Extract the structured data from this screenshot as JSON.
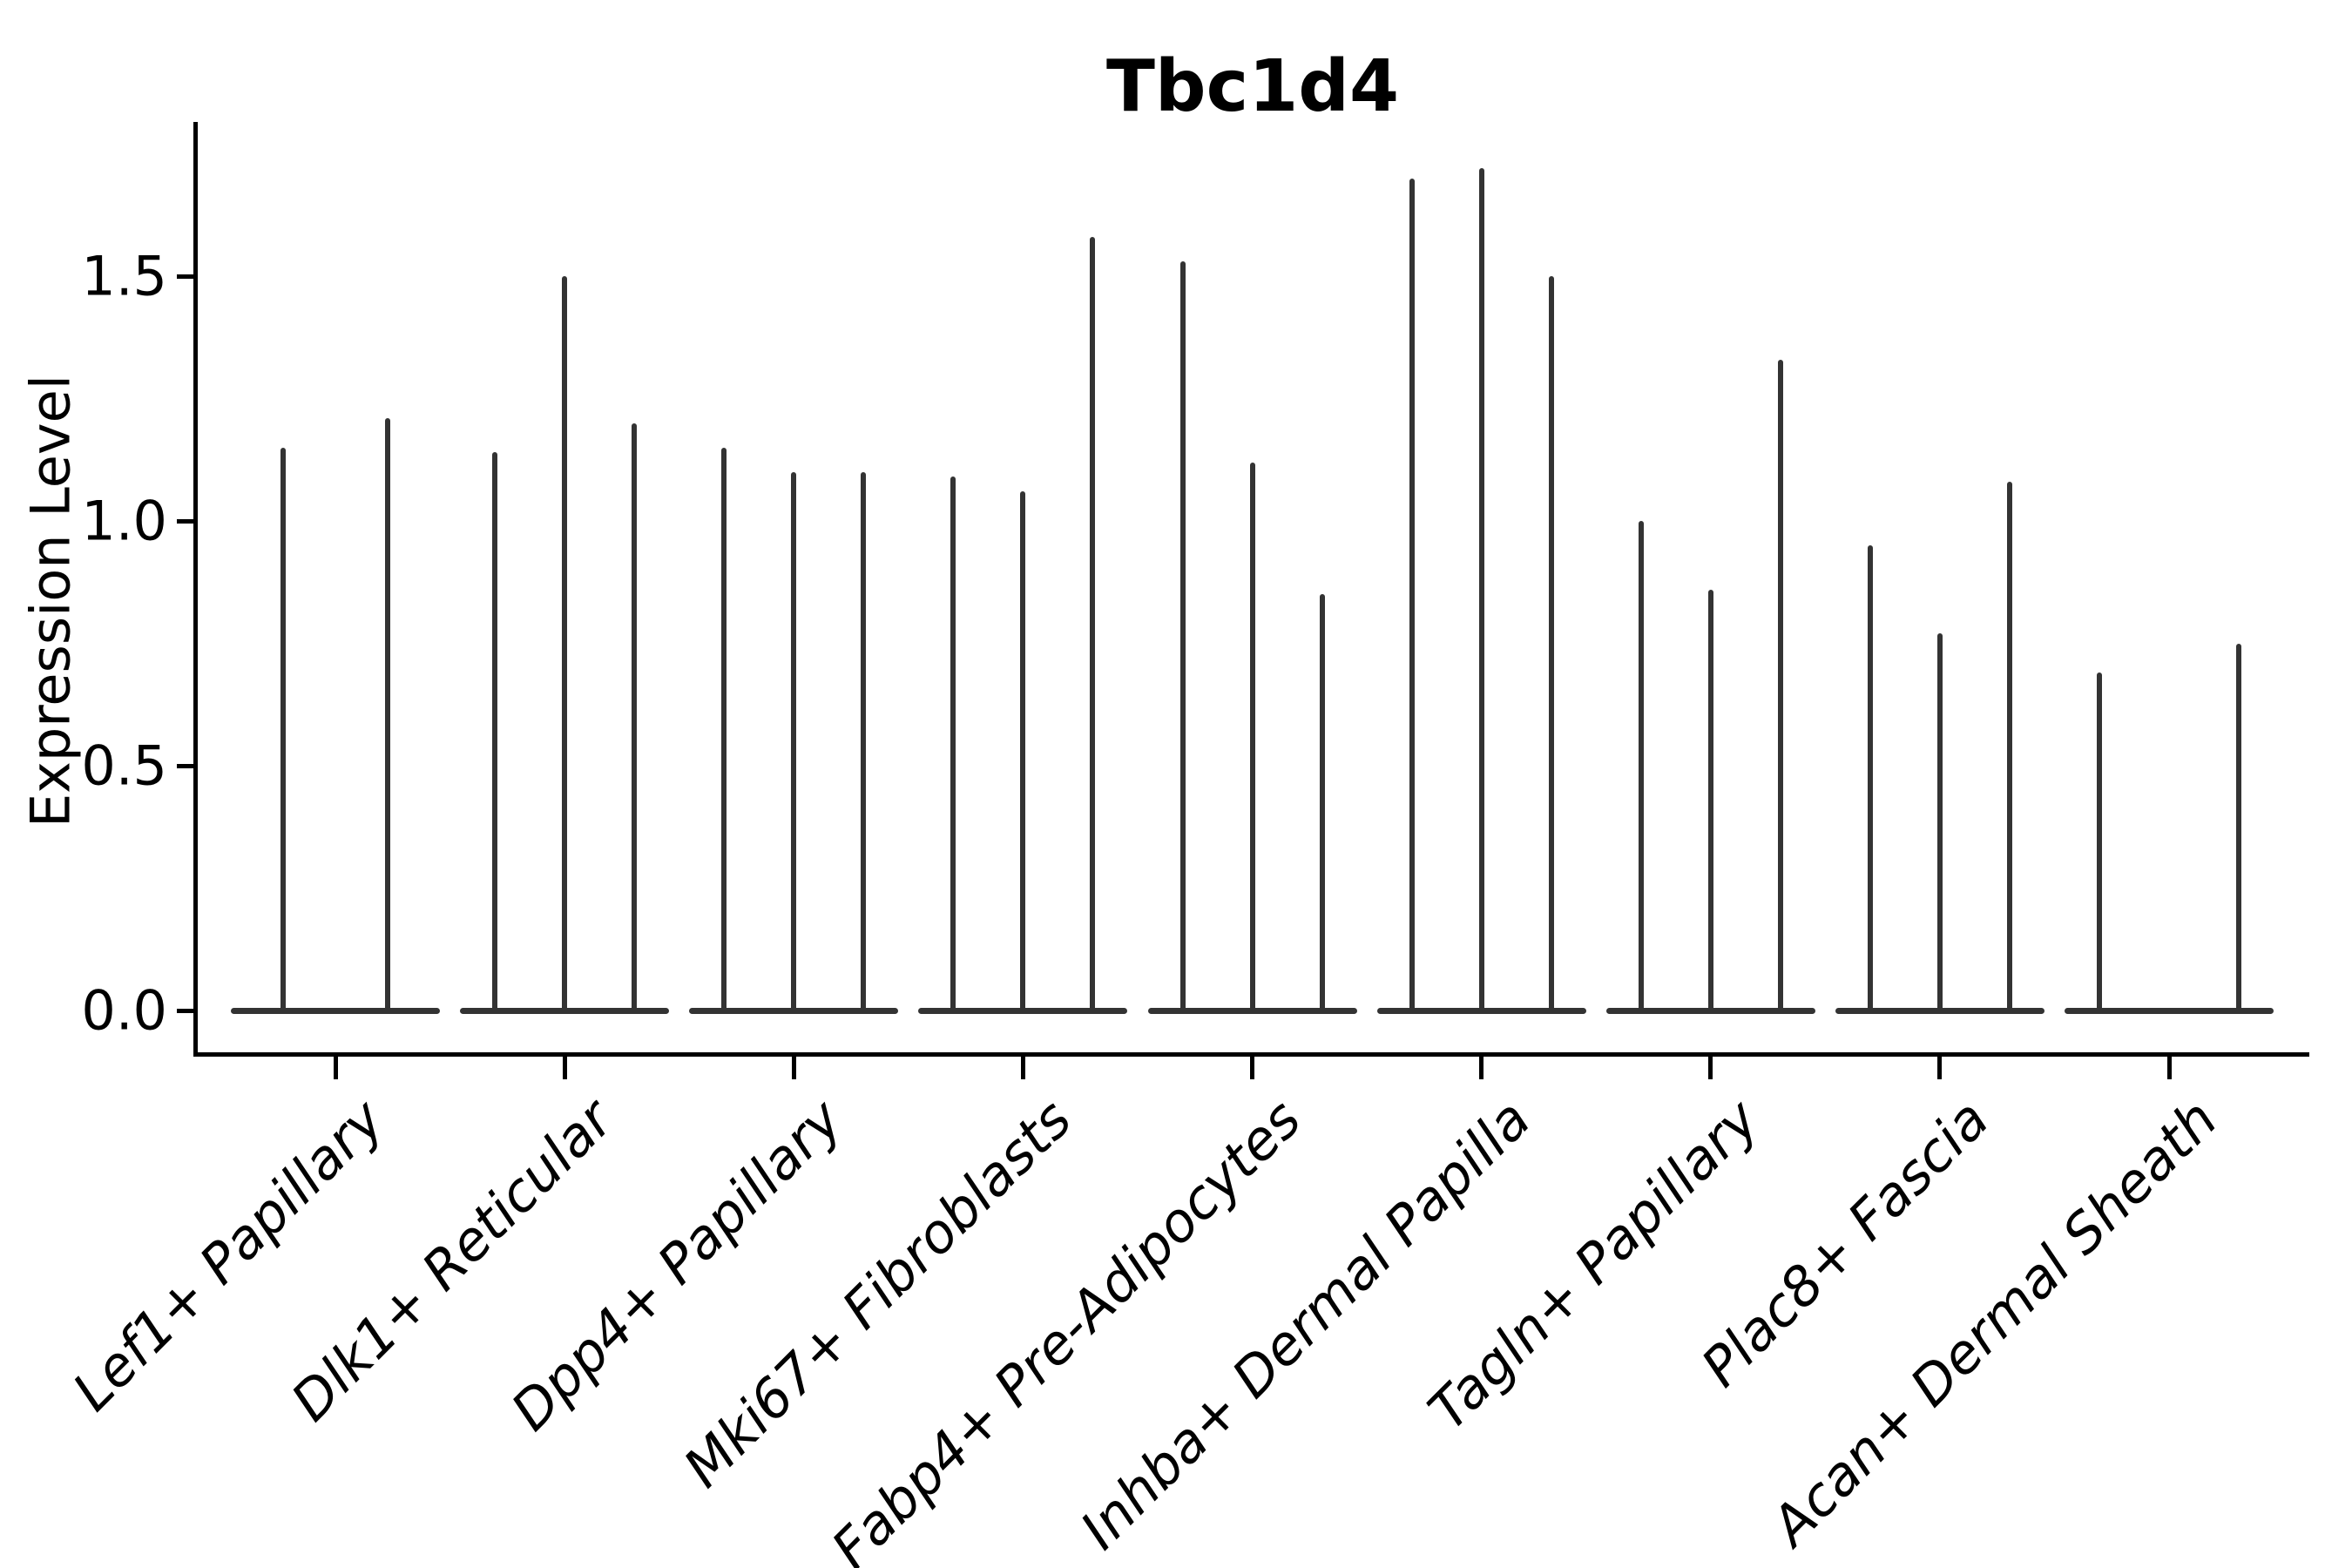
{
  "title": "Tbc1d4",
  "axes": {
    "ylabel": "Expression Level",
    "yticks": [
      {
        "label": "0.0",
        "value": 0.0
      },
      {
        "label": "0.5",
        "value": 0.5
      },
      {
        "label": "1.0",
        "value": 1.0
      },
      {
        "label": "1.5",
        "value": 1.5
      }
    ]
  },
  "colors": {
    "violin": "#333333",
    "axis": "#000000",
    "text": "#000000",
    "background": "#ffffff"
  },
  "chart_data": {
    "type": "violin",
    "title": "Tbc1d4",
    "xlabel": "",
    "ylabel": "Expression Level",
    "ylim": [
      -0.09,
      1.81
    ],
    "yticks": [
      0.0,
      0.5,
      1.0,
      1.5
    ],
    "grid": false,
    "legend": false,
    "description": "Sparse single-cell expression violins collapsed to baseline pancakes at 0 with thin spikes reaching each violin's maximum expression value; up to 3 dodged violins per cell-type category.",
    "categories": [
      "Lef1+ Papillary",
      "Dlk1+ Reticular",
      "Dpp4+ Papillary",
      "Mki67+ Fibroblasts",
      "Fabp4+ Pre-Adipocytes",
      "Inhba+ Dermal Papilla",
      "Tagln+ Papillary",
      "Plac8+ Fascia",
      "Acan+ Dermal Sheath"
    ],
    "groups": [
      {
        "label": "Lef1+ Papillary",
        "violins": [
          {
            "offset": -60,
            "max": 1.15
          },
          {
            "offset": 60,
            "max": 1.21
          }
        ]
      },
      {
        "label": "Dlk1+ Reticular",
        "violins": [
          {
            "offset": -80,
            "max": 1.14
          },
          {
            "offset": 0,
            "max": 1.5
          },
          {
            "offset": 80,
            "max": 1.2
          }
        ]
      },
      {
        "label": "Dpp4+ Papillary",
        "violins": [
          {
            "offset": -80,
            "max": 1.15
          },
          {
            "offset": 0,
            "max": 1.1
          },
          {
            "offset": 80,
            "max": 1.1
          }
        ]
      },
      {
        "label": "Mki67+ Fibroblasts",
        "violins": [
          {
            "offset": -80,
            "max": 1.09
          },
          {
            "offset": 0,
            "max": 1.06
          },
          {
            "offset": 80,
            "max": 1.58
          }
        ]
      },
      {
        "label": "Fabp4+ Pre-Adipocytes",
        "violins": [
          {
            "offset": -80,
            "max": 1.53
          },
          {
            "offset": 0,
            "max": 1.12
          },
          {
            "offset": 80,
            "max": 0.85
          }
        ]
      },
      {
        "label": "Inhba+ Dermal Papilla",
        "violins": [
          {
            "offset": -80,
            "max": 1.7
          },
          {
            "offset": 0,
            "max": 1.72
          },
          {
            "offset": 80,
            "max": 1.5
          }
        ]
      },
      {
        "label": "Tagln+ Papillary",
        "violins": [
          {
            "offset": -80,
            "max": 1.0
          },
          {
            "offset": 0,
            "max": 0.86
          },
          {
            "offset": 80,
            "max": 1.33
          }
        ]
      },
      {
        "label": "Plac8+ Fascia",
        "violins": [
          {
            "offset": -80,
            "max": 0.95
          },
          {
            "offset": 0,
            "max": 0.77
          },
          {
            "offset": 80,
            "max": 1.08
          }
        ]
      },
      {
        "label": "Acan+ Dermal Sheath",
        "violins": [
          {
            "offset": -80,
            "max": 0.69
          },
          {
            "offset": 80,
            "max": 0.75
          }
        ]
      }
    ]
  }
}
